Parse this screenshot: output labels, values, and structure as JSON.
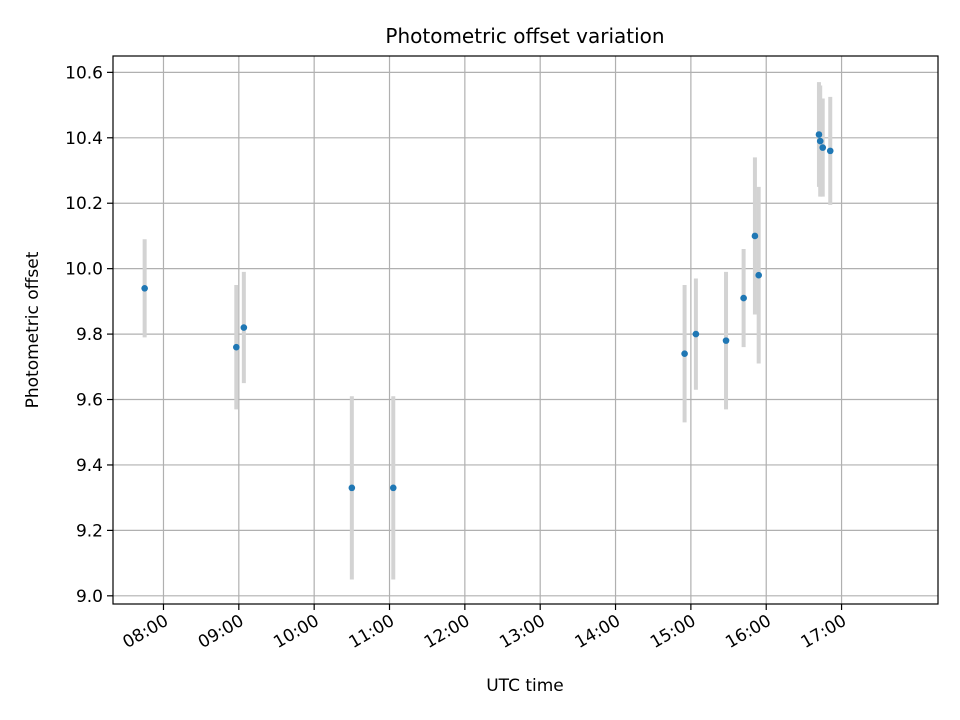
{
  "chart_data": {
    "type": "scatter",
    "title": "Photometric offset variation",
    "xlabel": "UTC time",
    "ylabel": "Photometric offset",
    "x_tick_labels": [
      "08:00",
      "09:00",
      "10:00",
      "11:00",
      "12:00",
      "13:00",
      "14:00",
      "15:00",
      "16:00",
      "17:00"
    ],
    "x_tick_hours": [
      8,
      9,
      10,
      11,
      12,
      13,
      14,
      15,
      16,
      17
    ],
    "xlim_hours": [
      7.33,
      18.28
    ],
    "y_ticks": [
      9.0,
      9.2,
      9.4,
      9.6,
      9.8,
      10.0,
      10.2,
      10.4,
      10.6
    ],
    "y_tick_labels": [
      "9.0",
      "9.2",
      "9.4",
      "9.6",
      "9.8",
      "10.0",
      "10.2",
      "10.4",
      "10.6"
    ],
    "ylim": [
      8.975,
      10.65
    ],
    "grid": true,
    "series": [
      {
        "x_time": [
          "07:45",
          "08:58",
          "09:04",
          "10:30",
          "11:03",
          "14:55",
          "15:04",
          "15:28",
          "15:42",
          "15:51",
          "15:54",
          "16:42",
          "16:43",
          "16:45",
          "16:51"
        ],
        "y": [
          9.94,
          9.76,
          9.82,
          9.33,
          9.33,
          9.74,
          9.8,
          9.78,
          9.91,
          10.1,
          9.98,
          10.41,
          10.39,
          10.37,
          10.36
        ],
        "yerr": [
          0.15,
          0.19,
          0.17,
          0.28,
          0.28,
          0.21,
          0.17,
          0.21,
          0.15,
          0.24,
          0.27,
          0.16,
          0.17,
          0.15,
          0.165
        ],
        "marker_color": "#1f77b4",
        "errorbar_color": "#d3d3d3"
      }
    ]
  }
}
